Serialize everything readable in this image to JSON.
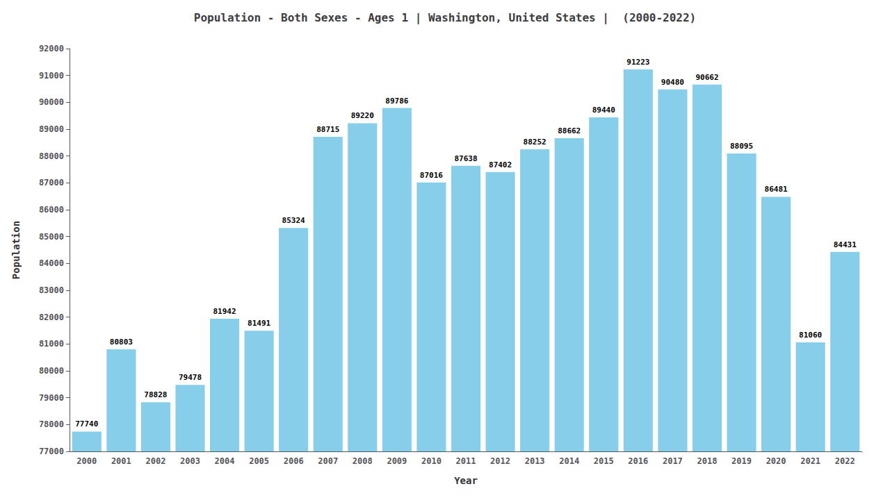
{
  "chart_data": {
    "type": "bar",
    "title": "Population - Both Sexes - Ages 1 | Washington, United States |  (2000-2022)",
    "xlabel": "Year",
    "ylabel": "Population",
    "categories": [
      "2000",
      "2001",
      "2002",
      "2003",
      "2004",
      "2005",
      "2006",
      "2007",
      "2008",
      "2009",
      "2010",
      "2011",
      "2012",
      "2013",
      "2014",
      "2015",
      "2016",
      "2017",
      "2018",
      "2019",
      "2020",
      "2021",
      "2022"
    ],
    "values": [
      77740,
      80803,
      78828,
      79478,
      81942,
      81491,
      85324,
      88715,
      89220,
      89786,
      87016,
      87638,
      87402,
      88252,
      88662,
      89440,
      91223,
      90480,
      90662,
      88095,
      86481,
      81060,
      84431
    ],
    "color": "#87CEEB",
    "ylim": [
      77000,
      92000
    ],
    "yticks": [
      77000,
      78000,
      79000,
      80000,
      81000,
      82000,
      83000,
      84000,
      85000,
      86000,
      87000,
      88000,
      89000,
      90000,
      91000,
      92000
    ],
    "grid": false,
    "data_labels": true
  }
}
